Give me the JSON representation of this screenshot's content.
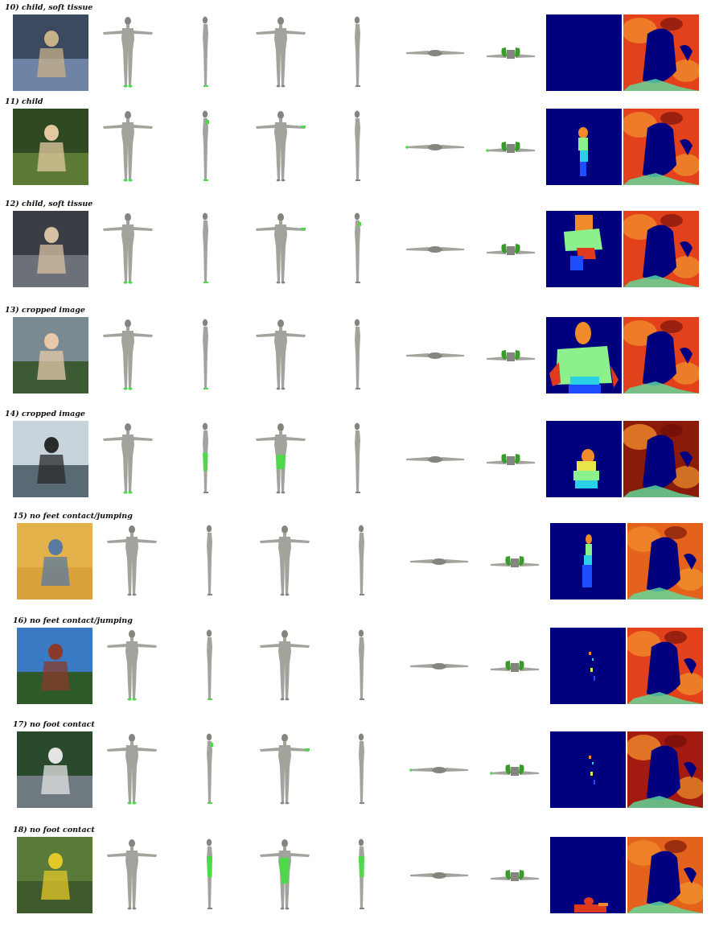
{
  "rows": [
    {
      "label": "10) child, soft tissue",
      "photo": "sleeping-child-photo",
      "contact": {
        "tf": [
          "feet"
        ],
        "sf": [
          "feet"
        ],
        "tb": [],
        "sb": [],
        "top": [],
        "bot": [
          "shoulders"
        ]
      },
      "seg": "empty",
      "depth": "warm"
    },
    {
      "label": "11) child",
      "photo": "child-outdoor-photo",
      "contact": {
        "tf": [
          "feet"
        ],
        "sf": [
          "feet",
          "shoulder"
        ],
        "tb": [
          "hands"
        ],
        "sb": [],
        "top": [
          "hands"
        ],
        "bot": [
          "shoulders",
          "hands"
        ]
      },
      "seg": "small",
      "depth": "warm"
    },
    {
      "label": "12) child, soft tissue",
      "photo": "car-seat-child-photo",
      "contact": {
        "tf": [
          "feet"
        ],
        "sf": [
          "feet"
        ],
        "tb": [
          "hands"
        ],
        "sb": [
          "shoulder"
        ],
        "top": [],
        "bot": [
          "shoulders"
        ]
      },
      "seg": "child",
      "depth": "warm"
    },
    {
      "label": "13) cropped image",
      "photo": "man-cap-photo",
      "contact": {
        "tf": [
          "feet"
        ],
        "sf": [
          "feet"
        ],
        "tb": [],
        "sb": [],
        "top": [],
        "bot": [
          "shoulders"
        ]
      },
      "seg": "bust",
      "depth": "warm"
    },
    {
      "label": "14) cropped image",
      "photo": "woman-desk-photo",
      "contact": {
        "tf": [
          "feet"
        ],
        "sf": [
          "thighs"
        ],
        "tb": [
          "thighs"
        ],
        "sb": [],
        "top": [],
        "bot": [
          "shoulders"
        ]
      },
      "seg": "seated",
      "depth": "dark"
    },
    {
      "label": "15)  no feet contact/jumping",
      "photo": "jumping-woman-photo",
      "contact": {
        "tf": [],
        "sf": [],
        "tb": [],
        "sb": [],
        "top": [],
        "bot": [
          "shoulders"
        ]
      },
      "seg": "standing",
      "depth": "orange"
    },
    {
      "label": "16) no feet contact/jumping",
      "photo": "skateboard-jump-photo",
      "contact": {
        "tf": [
          "feet"
        ],
        "sf": [
          "feet"
        ],
        "tb": [],
        "sb": [],
        "top": [],
        "bot": [
          "shoulders"
        ]
      },
      "seg": "specks",
      "depth": "warm"
    },
    {
      "label": "17) no foot contact",
      "photo": "tennis-player-photo",
      "contact": {
        "tf": [
          "feet"
        ],
        "sf": [
          "feet",
          "shoulder"
        ],
        "tb": [
          "hands"
        ],
        "sb": [],
        "top": [
          "hands"
        ],
        "bot": [
          "shoulders",
          "hands"
        ]
      },
      "seg": "specks",
      "depth": "mixed"
    },
    {
      "label": "18) no foot contact",
      "photo": "kayak-person-photo",
      "contact": {
        "tf": [],
        "sf": [
          "torso"
        ],
        "tb": [
          "torso"
        ],
        "sb": [
          "torso"
        ],
        "top": [],
        "bot": [
          "shoulders"
        ]
      },
      "seg": "lying",
      "depth": "orange"
    }
  ]
}
